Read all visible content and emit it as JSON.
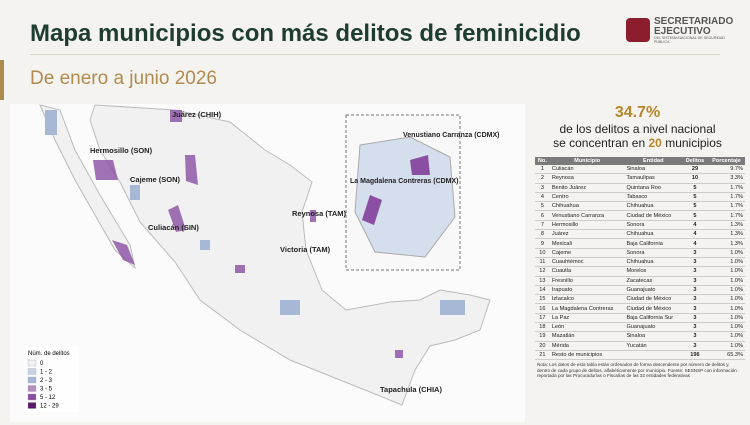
{
  "header": {
    "title": "Mapa municipios con más delitos de feminicidio",
    "subtitle": "De enero a junio 2026"
  },
  "logo": {
    "line1": "SECRETARIADO",
    "line2": "EJECUTIVO",
    "line3": "DEL SISTEMA NACIONAL DE SEGURIDAD PÚBLICA"
  },
  "map": {
    "labels": [
      "Juárez (CHIH)",
      "Hermosillo (SON)",
      "Cajeme (SON)",
      "Culiacán (SIN)",
      "Reynosa (TAM)",
      "Victoria (TAM)",
      "Tapachula (CHIA)"
    ],
    "inset_labels": [
      "Venustiano Carranza (CDMX)",
      "La Magdalena Contreras (CDMX)"
    ],
    "legend": {
      "title": "Núm. de delitos",
      "items": [
        "0",
        "1 - 2",
        "2 - 3",
        "3 - 5",
        "5 - 12",
        "12 - 29"
      ]
    }
  },
  "stat": {
    "value": "34.7%",
    "line1": "de los delitos a nivel nacional",
    "line2_pre": "se concentran en",
    "count": "20",
    "line2_post": "municipios"
  },
  "table": {
    "header": [
      "No.",
      "Municipio",
      "Entidad",
      "Delitos",
      "Porcentaje"
    ],
    "rows": [
      [
        "1",
        "Culiacán",
        "Sinaloa",
        "29",
        "9.7%"
      ],
      [
        "2",
        "Reynosa",
        "Tamaulipas",
        "10",
        "3.3%"
      ],
      [
        "3",
        "Benito Juárez",
        "Quintana Roo",
        "5",
        "1.7%"
      ],
      [
        "4",
        "Centro",
        "Tabasco",
        "5",
        "1.7%"
      ],
      [
        "5",
        "Chihuahua",
        "Chihuahua",
        "5",
        "1.7%"
      ],
      [
        "6",
        "Venustiano Carranza",
        "Ciudad de México",
        "5",
        "1.7%"
      ],
      [
        "7",
        "Hermosillo",
        "Sonora",
        "4",
        "1.3%"
      ],
      [
        "8",
        "Juárez",
        "Chihuahua",
        "4",
        "1.3%"
      ],
      [
        "9",
        "Mexicali",
        "Baja California",
        "4",
        "1.3%"
      ],
      [
        "10",
        "Cajeme",
        "Sonora",
        "3",
        "1.0%"
      ],
      [
        "11",
        "Cuauhtémoc",
        "Chihuahua",
        "3",
        "1.0%"
      ],
      [
        "12",
        "Cuautla",
        "Morelos",
        "3",
        "1.0%"
      ],
      [
        "13",
        "Fresnillo",
        "Zacatecas",
        "3",
        "1.0%"
      ],
      [
        "14",
        "Irapuato",
        "Guanajuato",
        "3",
        "1.0%"
      ],
      [
        "15",
        "Iztacalco",
        "Ciudad de México",
        "3",
        "1.0%"
      ],
      [
        "16",
        "La Magdalena Contreras",
        "Ciudad de México",
        "3",
        "1.0%"
      ],
      [
        "17",
        "La Paz",
        "Baja California Sur",
        "3",
        "1.0%"
      ],
      [
        "18",
        "León",
        "Guanajuato",
        "3",
        "1.0%"
      ],
      [
        "19",
        "Mazatlán",
        "Sinaloa",
        "3",
        "1.0%"
      ],
      [
        "20",
        "Mérida",
        "Yucatán",
        "3",
        "1.0%"
      ],
      [
        "21",
        "Resto de municipios",
        "",
        "196",
        "65.3%"
      ]
    ]
  },
  "note": "Nota: Los datos de esta tabla están ordenados de forma descendente por número de delitos y, dentro de cada grupo de delitos, alfabéticamente por municipio. Fuente: SESNSP con información reportada por las Procuradurías o Fiscalías de las 32 entidades federativas"
}
